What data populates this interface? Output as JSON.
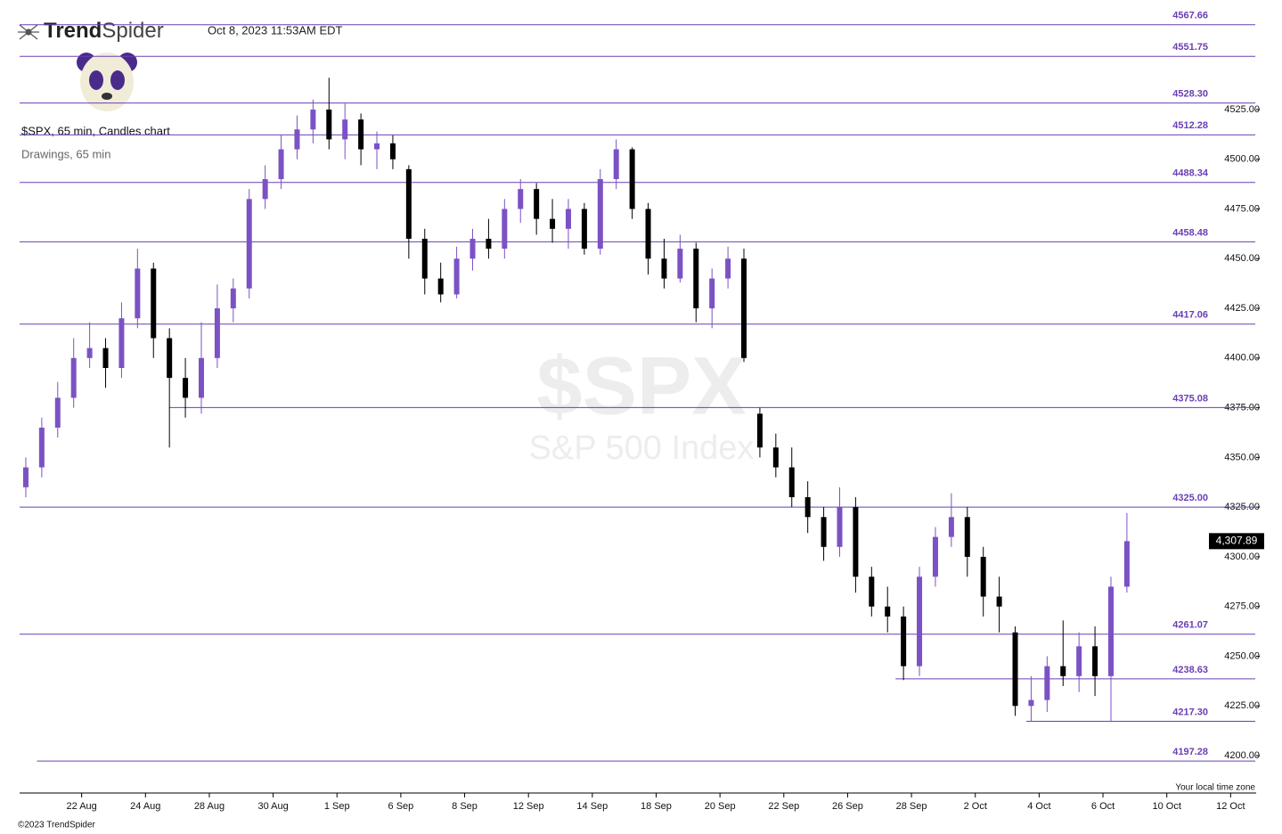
{
  "header": {
    "brand": [
      "Trend",
      "Spider"
    ],
    "timestamp": "Oct 8, 2023 11:53AM EDT"
  },
  "footer": "©2023 TrendSpider",
  "chart_data": {
    "type": "candlestick",
    "title": "$SPX, 65 min, Candles chart",
    "subtitle": "Drawings, 65 min",
    "watermark": "$SPX",
    "watermark_subtitle": "S&P 500 Index",
    "x_note": "Your local time zone",
    "up_color": "#7b52c4",
    "down_color": "#000000",
    "level_color": "#6a3fb5",
    "xlim": [
      0,
      38.8
    ],
    "ylim": [
      4181.2,
      4580.1
    ],
    "xticks": [
      {
        "value": 2,
        "label": "22 Aug"
      },
      {
        "value": 4,
        "label": "24 Aug"
      },
      {
        "value": 6,
        "label": "28 Aug"
      },
      {
        "value": 8,
        "label": "30 Aug"
      },
      {
        "value": 10,
        "label": "1 Sep"
      },
      {
        "value": 12,
        "label": "6 Sep"
      },
      {
        "value": 14,
        "label": "8 Sep"
      },
      {
        "value": 16,
        "label": "12 Sep"
      },
      {
        "value": 18,
        "label": "14 Sep"
      },
      {
        "value": 20,
        "label": "18 Sep"
      },
      {
        "value": 22,
        "label": "20 Sep"
      },
      {
        "value": 24,
        "label": "22 Sep"
      },
      {
        "value": 26,
        "label": "26 Sep"
      },
      {
        "value": 28,
        "label": "28 Sep"
      },
      {
        "value": 30,
        "label": "2 Oct"
      },
      {
        "value": 32,
        "label": "4 Oct"
      },
      {
        "value": 34,
        "label": "6 Oct"
      },
      {
        "value": 36,
        "label": "10 Oct"
      },
      {
        "value": 38,
        "label": "12 Oct"
      }
    ],
    "yticks": [
      {
        "value": 4200,
        "label": "4200.00"
      },
      {
        "value": 4225,
        "label": "4225.00"
      },
      {
        "value": 4250,
        "label": "4250.00"
      },
      {
        "value": 4275,
        "label": "4275.00"
      },
      {
        "value": 4300,
        "label": "4300.00"
      },
      {
        "value": 4325,
        "label": "4325.00"
      },
      {
        "value": 4350,
        "label": "4350.00"
      },
      {
        "value": 4375,
        "label": "4375.00"
      },
      {
        "value": 4400,
        "label": "4400.00"
      },
      {
        "value": 4425,
        "label": "4425.00"
      },
      {
        "value": 4450,
        "label": "4450.00"
      },
      {
        "value": 4475,
        "label": "4475.00"
      },
      {
        "value": 4500,
        "label": "4500.00"
      },
      {
        "value": 4525,
        "label": "4525.00"
      }
    ],
    "levels": [
      {
        "value": 4567.66,
        "label": "4567.66",
        "start": 0
      },
      {
        "value": 4551.75,
        "label": "4551.75",
        "start": 0
      },
      {
        "value": 4528.3,
        "label": "4528.30",
        "start": 0
      },
      {
        "value": 4512.28,
        "label": "4512.28",
        "start": 0
      },
      {
        "value": 4488.34,
        "label": "4488.34",
        "start": 0
      },
      {
        "value": 4458.48,
        "label": "4458.48",
        "start": 0
      },
      {
        "value": 4417.06,
        "label": "4417.06",
        "start": 0
      },
      {
        "value": 4375.08,
        "label": "4375.08",
        "start": 4.75
      },
      {
        "value": 4325.0,
        "label": "4325.00",
        "start": 0
      },
      {
        "value": 4261.07,
        "label": "4261.07",
        "start": 0
      },
      {
        "value": 4238.63,
        "label": "4238.63",
        "start": 27.5
      },
      {
        "value": 4217.3,
        "label": "4217.30",
        "start": 31.6
      },
      {
        "value": 4197.28,
        "label": "4197.28",
        "start": 0.6
      }
    ],
    "last_price": {
      "value": 4307.89,
      "label": "4,307.89"
    },
    "x": [
      0.25,
      0.75,
      1.25,
      1.75,
      2.25,
      2.75,
      3.25,
      3.75,
      4.25,
      4.75,
      5.25,
      5.75,
      6.25,
      6.75,
      7.25,
      7.75,
      8.25,
      8.75,
      9.25,
      9.75,
      10.25,
      10.75,
      11.25,
      11.75,
      12.25,
      12.75,
      13.25,
      13.75,
      14.25,
      14.75,
      15.25,
      15.75,
      16.25,
      16.75,
      17.25,
      17.75,
      18.25,
      18.75,
      19.25,
      19.75,
      20.25,
      20.75,
      21.25,
      21.75,
      22.25,
      22.75,
      23.25,
      23.75,
      24.25,
      24.75,
      25.25,
      25.75,
      26.25,
      26.75,
      27.25,
      27.75,
      28.25,
      28.75,
      29.25,
      29.75,
      30.25,
      30.75,
      31.25,
      31.75,
      32.25,
      32.75,
      33.25,
      33.75,
      34.25,
      34.75
    ],
    "open": [
      4335,
      4345,
      4365,
      4380,
      4400,
      4405,
      4395,
      4420,
      4445,
      4410,
      4390,
      4380,
      4400,
      4425,
      4435,
      4480,
      4490,
      4505,
      4515,
      4525,
      4510,
      4520,
      4505,
      4508,
      4495,
      4460,
      4440,
      4432,
      4450,
      4460,
      4455,
      4475,
      4485,
      4470,
      4465,
      4475,
      4455,
      4490,
      4505,
      4475,
      4450,
      4440,
      4455,
      4425,
      4440,
      4450,
      4372,
      4355,
      4345,
      4330,
      4320,
      4305,
      4325,
      4290,
      4275,
      4270,
      4245,
      4290,
      4310,
      4320,
      4300,
      4280,
      4262,
      4225,
      4228,
      4245,
      4240,
      4255,
      4240,
      4285
    ],
    "high": [
      4350,
      4370,
      4388,
      4410,
      4418,
      4410,
      4428,
      4455,
      4448,
      4415,
      4400,
      4418,
      4437,
      4440,
      4485,
      4497,
      4512,
      4522,
      4530,
      4541,
      4528,
      4523,
      4514,
      4512,
      4497,
      4465,
      4448,
      4456,
      4465,
      4470,
      4480,
      4490,
      4488,
      4480,
      4480,
      4478,
      4495,
      4510,
      4506,
      4478,
      4460,
      4462,
      4458,
      4445,
      4456,
      4455,
      4375,
      4362,
      4355,
      4338,
      4325,
      4335,
      4330,
      4295,
      4285,
      4275,
      4295,
      4315,
      4332,
      4325,
      4305,
      4290,
      4265,
      4240,
      4250,
      4268,
      4262,
      4265,
      4290,
      4322
    ],
    "low": [
      4330,
      4340,
      4360,
      4375,
      4395,
      4385,
      4390,
      4415,
      4400,
      4355,
      4370,
      4372,
      4395,
      4418,
      4430,
      4475,
      4485,
      4500,
      4508,
      4505,
      4500,
      4497,
      4495,
      4495,
      4450,
      4432,
      4428,
      4430,
      4444,
      4450,
      4450,
      4468,
      4462,
      4458,
      4455,
      4452,
      4452,
      4485,
      4470,
      4442,
      4435,
      4438,
      4418,
      4415,
      4435,
      4398,
      4350,
      4340,
      4325,
      4312,
      4298,
      4300,
      4282,
      4270,
      4262,
      4238,
      4240,
      4285,
      4305,
      4290,
      4270,
      4262,
      4220,
      4217,
      4222,
      4235,
      4232,
      4230,
      4217,
      4282
    ],
    "close": [
      4345,
      4365,
      4380,
      4400,
      4405,
      4395,
      4420,
      4445,
      4410,
      4390,
      4380,
      4400,
      4425,
      4435,
      4480,
      4490,
      4505,
      4515,
      4525,
      4510,
      4520,
      4505,
      4508,
      4500,
      4460,
      4440,
      4432,
      4450,
      4460,
      4455,
      4475,
      4485,
      4470,
      4465,
      4475,
      4455,
      4490,
      4505,
      4475,
      4450,
      4440,
      4455,
      4425,
      4440,
      4450,
      4400,
      4355,
      4345,
      4330,
      4320,
      4305,
      4325,
      4290,
      4275,
      4270,
      4245,
      4290,
      4310,
      4320,
      4300,
      4280,
      4275,
      4225,
      4228,
      4245,
      4240,
      4255,
      4240,
      4285,
      4307.89
    ]
  }
}
